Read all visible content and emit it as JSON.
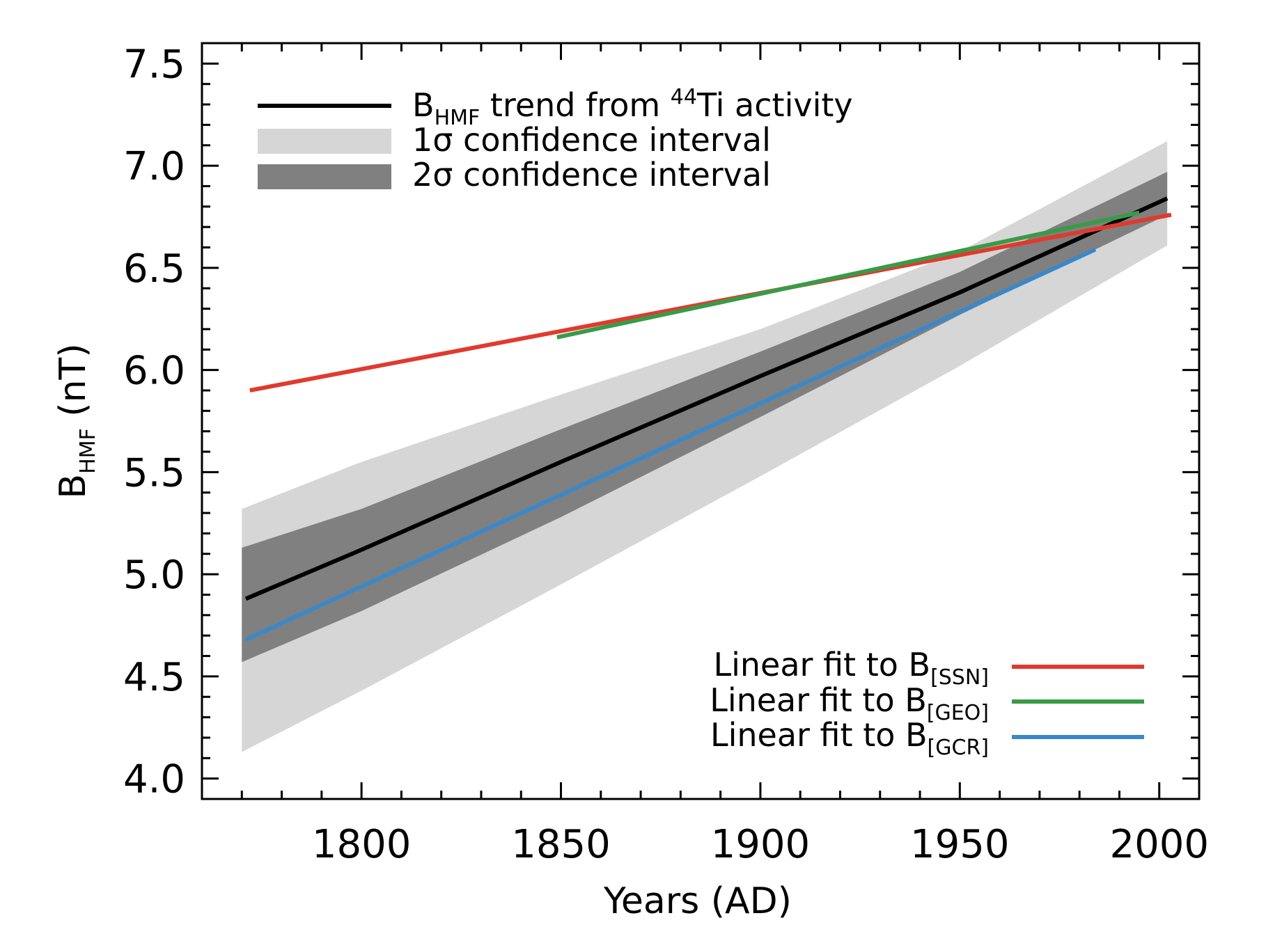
{
  "chart_data": {
    "type": "line",
    "xlabel": "Years (AD)",
    "ylabel": {
      "main": "B",
      "sub": "HMF",
      "unit": " (nT)"
    },
    "xlim": [
      1760,
      2010
    ],
    "ylim": [
      3.9,
      7.6
    ],
    "xticks": [
      1800,
      1850,
      1900,
      1950,
      2000
    ],
    "yticks": [
      4.0,
      4.5,
      5.0,
      5.5,
      6.0,
      6.5,
      7.0,
      7.5
    ],
    "xtick_labels": [
      "1800",
      "1850",
      "1900",
      "1950",
      "2000"
    ],
    "ytick_labels": [
      "4.0",
      "4.5",
      "5.0",
      "5.5",
      "6.0",
      "6.5",
      "7.0",
      "7.5"
    ],
    "x_minor_step": 10,
    "y_minor_step": 0.1,
    "bands": [
      {
        "name": "1σ confidence interval",
        "color": "#d6d6d6",
        "x": [
          1770,
          1800,
          1850,
          1900,
          1950,
          2002
        ],
        "lower": [
          4.13,
          4.43,
          4.95,
          5.48,
          6.02,
          6.61
        ],
        "upper": [
          5.32,
          5.55,
          5.88,
          6.2,
          6.58,
          7.12
        ]
      },
      {
        "name": "2σ confidence interval",
        "color": "#808080",
        "x": [
          1770,
          1800,
          1850,
          1900,
          1950,
          2002
        ],
        "lower": [
          4.57,
          4.82,
          5.28,
          5.77,
          6.27,
          6.76
        ],
        "upper": [
          5.13,
          5.32,
          5.71,
          6.09,
          6.48,
          6.97
        ]
      }
    ],
    "series": [
      {
        "name": "B_HMF trend from 44Ti activity",
        "color": "#000000",
        "x": [
          1771,
          1800,
          1850,
          1900,
          1950,
          2002
        ],
        "y": [
          4.88,
          5.12,
          5.55,
          5.97,
          6.38,
          6.84
        ]
      },
      {
        "name": "Linear fit to B[SSN]",
        "color": "#e03a2e",
        "x": [
          1772,
          2003
        ],
        "y": [
          5.9,
          6.76
        ]
      },
      {
        "name": "Linear fit to B[GEO]",
        "color": "#3a9a48",
        "x": [
          1849,
          1995
        ],
        "y": [
          6.16,
          6.77
        ]
      },
      {
        "name": "Linear fit to B[GCR]",
        "color": "#3a88c8",
        "x": [
          1771,
          1984
        ],
        "y": [
          4.68,
          6.59
        ]
      }
    ],
    "legend_top": {
      "line": {
        "main": "B",
        "sub": "HMF",
        "text": " trend from ",
        "sup": "44",
        "tail": "Ti activity"
      },
      "band1": "1σ confidence interval",
      "band2": "2σ confidence interval"
    },
    "legend_bottom": [
      {
        "text": "Linear fit to B",
        "sub": "[SSN]"
      },
      {
        "text": "Linear fit to B",
        "sub": "[GEO]"
      },
      {
        "text": "Linear fit to B",
        "sub": "[GCR]"
      }
    ]
  }
}
